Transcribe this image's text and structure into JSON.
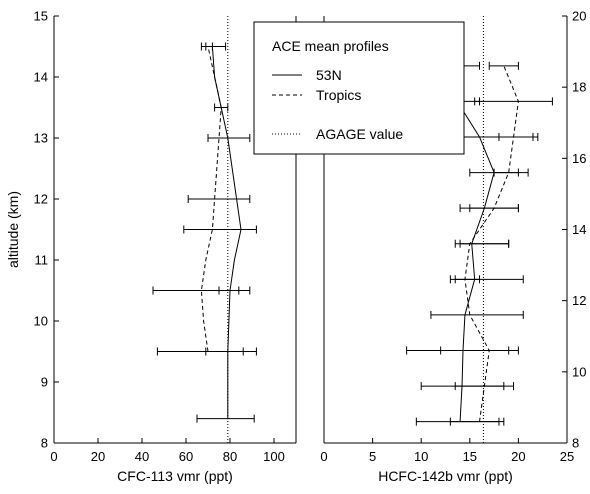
{
  "chart_data": [
    {
      "type": "line",
      "xlabel": "CFC-113 vmr (ppt)",
      "ylabel": "altitude (km)",
      "xlim": [
        0,
        110
      ],
      "ylim": [
        8,
        15
      ],
      "xticks": [
        "0",
        "20",
        "40",
        "60",
        "80",
        "100"
      ],
      "yticks": [
        "8",
        "9",
        "10",
        "11",
        "12",
        "13",
        "14",
        "15"
      ],
      "reference_x": 79,
      "series": [
        {
          "name": "53N",
          "style": "solid",
          "y": [
            8.4,
            9.0,
            9.5,
            10.5,
            11.0,
            11.5,
            12.0,
            12.5,
            13.0,
            13.5,
            14.0,
            14.5
          ],
          "x": [
            79,
            79,
            79,
            80,
            82,
            85,
            83,
            81,
            79,
            76,
            73,
            72
          ],
          "err_low": [
            65,
            null,
            47,
            45,
            null,
            59,
            61,
            null,
            70,
            null,
            null,
            67
          ],
          "err_high": [
            91,
            null,
            92,
            89,
            null,
            92,
            89,
            null,
            89,
            null,
            null,
            78
          ]
        },
        {
          "name": "Tropics",
          "style": "dashed",
          "y": [
            9.5,
            10.0,
            10.5,
            11.0,
            11.5,
            12.0,
            12.5,
            13.0,
            13.5,
            14.0,
            14.5
          ],
          "x": [
            70,
            68,
            67,
            69,
            72,
            73,
            74,
            75,
            76,
            73,
            70
          ],
          "err_low": [
            69,
            null,
            75,
            null,
            null,
            null,
            null,
            null,
            73,
            null,
            69
          ],
          "err_high": [
            86,
            null,
            84,
            null,
            null,
            null,
            null,
            null,
            79,
            null,
            72
          ]
        }
      ]
    },
    {
      "type": "line",
      "xlabel": "HCFC-142b vmr (ppt)",
      "xlim": [
        0,
        25
      ],
      "ylim": [
        8,
        20
      ],
      "xticks": [
        "0",
        "5",
        "10",
        "15",
        "20",
        "25"
      ],
      "yticks": [
        "8",
        "10",
        "12",
        "14",
        "16",
        "18",
        "20"
      ],
      "reference_x": 16.4,
      "series": [
        {
          "name": "53N",
          "style": "solid",
          "y": [
            8.6,
            9.6,
            10.6,
            11.6,
            12.6,
            13.6,
            14.6,
            15.6,
            16.6,
            17.6,
            18.6
          ],
          "x": [
            14.0,
            14.2,
            14.3,
            14.5,
            15.5,
            15.2,
            16.5,
            17.5,
            16.0,
            13.7,
            13.7
          ],
          "err_low": [
            9.5,
            10.0,
            8.5,
            11.0,
            13.5,
            14.0,
            15.0,
            15.0,
            13.0,
            11.0,
            11.5
          ],
          "err_high": [
            18.5,
            18.5,
            20.0,
            20.5,
            20.5,
            19.0,
            20.0,
            21.0,
            22.0,
            23.5,
            16.0
          ]
        },
        {
          "name": "Tropics",
          "style": "dashed",
          "y": [
            8.6,
            9.6,
            10.6,
            11.6,
            12.6,
            13.6,
            14.6,
            15.6,
            16.6,
            17.6,
            18.6
          ],
          "x": [
            16.0,
            16.5,
            17.0,
            15.0,
            14.5,
            15.0,
            17.5,
            19.0,
            19.5,
            20.0,
            18.5
          ],
          "err_low": [
            13.0,
            13.5,
            12.0,
            null,
            13.0,
            13.5,
            14.0,
            17.5,
            18.0,
            15.5,
            17.0
          ],
          "err_high": [
            18.0,
            19.5,
            19.0,
            null,
            16.0,
            19.0,
            20.0,
            20.0,
            21.5,
            16.0,
            20.0
          ]
        }
      ]
    }
  ],
  "legend": {
    "title": "ACE mean profiles",
    "items": [
      {
        "label": "53N",
        "style": "solid"
      },
      {
        "label": "Tropics",
        "style": "dashed"
      },
      {
        "label": "AGAGE value",
        "style": "dotted"
      }
    ]
  }
}
